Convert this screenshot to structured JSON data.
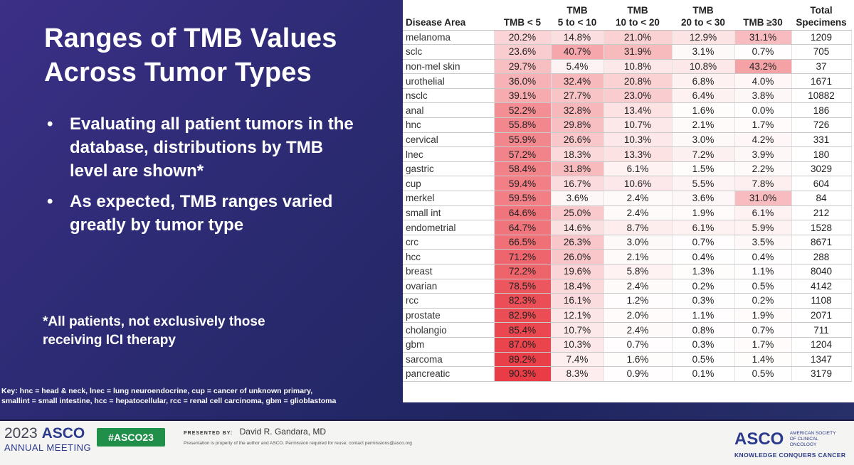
{
  "slide": {
    "title_line1": "Ranges of TMB Values",
    "title_line2": "Across Tumor Types",
    "bullets": [
      "Evaluating all patient tumors in the database, distributions by TMB level are shown*",
      "As expected, TMB ranges varied greatly by tumor type"
    ],
    "bullet_symbol": "•",
    "footnote": "*All patients, not exclusively those receiving ICI therapy",
    "key_line1": "Key: hnc = head & neck, lnec = lung neuroendocrine, cup = cancer of unknown primary,",
    "key_line2": "smallint = small intestine, hcc = hepatocellular, rcc = renal cell carcinoma, gbm = glioblastoma"
  },
  "table": {
    "headers": [
      {
        "top": "",
        "bottom": "Disease Area"
      },
      {
        "top": "",
        "bottom": "TMB < 5"
      },
      {
        "top": "TMB",
        "bottom": "5 to < 10"
      },
      {
        "top": "TMB",
        "bottom": "10 to < 20"
      },
      {
        "top": "TMB",
        "bottom": "20 to < 30"
      },
      {
        "top": "",
        "bottom": "TMB ≥30"
      },
      {
        "top": "Total",
        "bottom": "Specimens"
      }
    ],
    "rows": [
      [
        "melanoma",
        "20.2%",
        "14.8%",
        "21.0%",
        "12.9%",
        "31.1%",
        "1209"
      ],
      [
        "sclc",
        "23.6%",
        "40.7%",
        "31.9%",
        "3.1%",
        "0.7%",
        "705"
      ],
      [
        "non-mel skin",
        "29.7%",
        "5.4%",
        "10.8%",
        "10.8%",
        "43.2%",
        "37"
      ],
      [
        "urothelial",
        "36.0%",
        "32.4%",
        "20.8%",
        "6.8%",
        "4.0%",
        "1671"
      ],
      [
        "nsclc",
        "39.1%",
        "27.7%",
        "23.0%",
        "6.4%",
        "3.8%",
        "10882"
      ],
      [
        "anal",
        "52.2%",
        "32.8%",
        "13.4%",
        "1.6%",
        "0.0%",
        "186"
      ],
      [
        "hnc",
        "55.8%",
        "29.8%",
        "10.7%",
        "2.1%",
        "1.7%",
        "726"
      ],
      [
        "cervical",
        "55.9%",
        "26.6%",
        "10.3%",
        "3.0%",
        "4.2%",
        "331"
      ],
      [
        "lnec",
        "57.2%",
        "18.3%",
        "13.3%",
        "7.2%",
        "3.9%",
        "180"
      ],
      [
        "gastric",
        "58.4%",
        "31.8%",
        "6.1%",
        "1.5%",
        "2.2%",
        "3029"
      ],
      [
        "cup",
        "59.4%",
        "16.7%",
        "10.6%",
        "5.5%",
        "7.8%",
        "604"
      ],
      [
        "merkel",
        "59.5%",
        "3.6%",
        "2.4%",
        "3.6%",
        "31.0%",
        "84"
      ],
      [
        "small int",
        "64.6%",
        "25.0%",
        "2.4%",
        "1.9%",
        "6.1%",
        "212"
      ],
      [
        "endometrial",
        "64.7%",
        "14.6%",
        "8.7%",
        "6.1%",
        "5.9%",
        "1528"
      ],
      [
        "crc",
        "66.5%",
        "26.3%",
        "3.0%",
        "0.7%",
        "3.5%",
        "8671"
      ],
      [
        "hcc",
        "71.2%",
        "26.0%",
        "2.1%",
        "0.4%",
        "0.4%",
        "288"
      ],
      [
        "breast",
        "72.2%",
        "19.6%",
        "5.8%",
        "1.3%",
        "1.1%",
        "8040"
      ],
      [
        "ovarian",
        "78.5%",
        "18.4%",
        "2.4%",
        "0.2%",
        "0.5%",
        "4142"
      ],
      [
        "rcc",
        "82.3%",
        "16.1%",
        "1.2%",
        "0.3%",
        "0.2%",
        "1108"
      ],
      [
        "prostate",
        "82.9%",
        "12.1%",
        "2.0%",
        "1.1%",
        "1.9%",
        "2071"
      ],
      [
        "cholangio",
        "85.4%",
        "10.7%",
        "2.4%",
        "0.8%",
        "0.7%",
        "711"
      ],
      [
        "gbm",
        "87.0%",
        "10.3%",
        "0.7%",
        "0.3%",
        "1.7%",
        "1204"
      ],
      [
        "sarcoma",
        "89.2%",
        "7.4%",
        "1.6%",
        "0.5%",
        "1.4%",
        "1347"
      ],
      [
        "pancreatic",
        "90.3%",
        "8.3%",
        "0.9%",
        "0.1%",
        "0.5%",
        "3179"
      ]
    ],
    "heat_color": "#e8323c"
  },
  "footer": {
    "year": "2023",
    "brand": "ASCO",
    "meeting": "ANNUAL MEETING",
    "hashtag": "#ASCO23",
    "presented_label": "PRESENTED BY:",
    "presenter": "David R. Gandara, MD",
    "property_note": "Presentation is property of the author and ASCO. Permission required for reuse; contact permissions@asco.org",
    "asco_logo": "ASCO",
    "society": "AMERICAN SOCIETY OF CLINICAL ONCOLOGY",
    "tagline": "KNOWLEDGE CONQUERS CANCER"
  },
  "colors": {
    "slide_bg": "#2a2a70",
    "hashtag_green": "#1f8f4a",
    "asco_blue": "#2b3a8c"
  }
}
